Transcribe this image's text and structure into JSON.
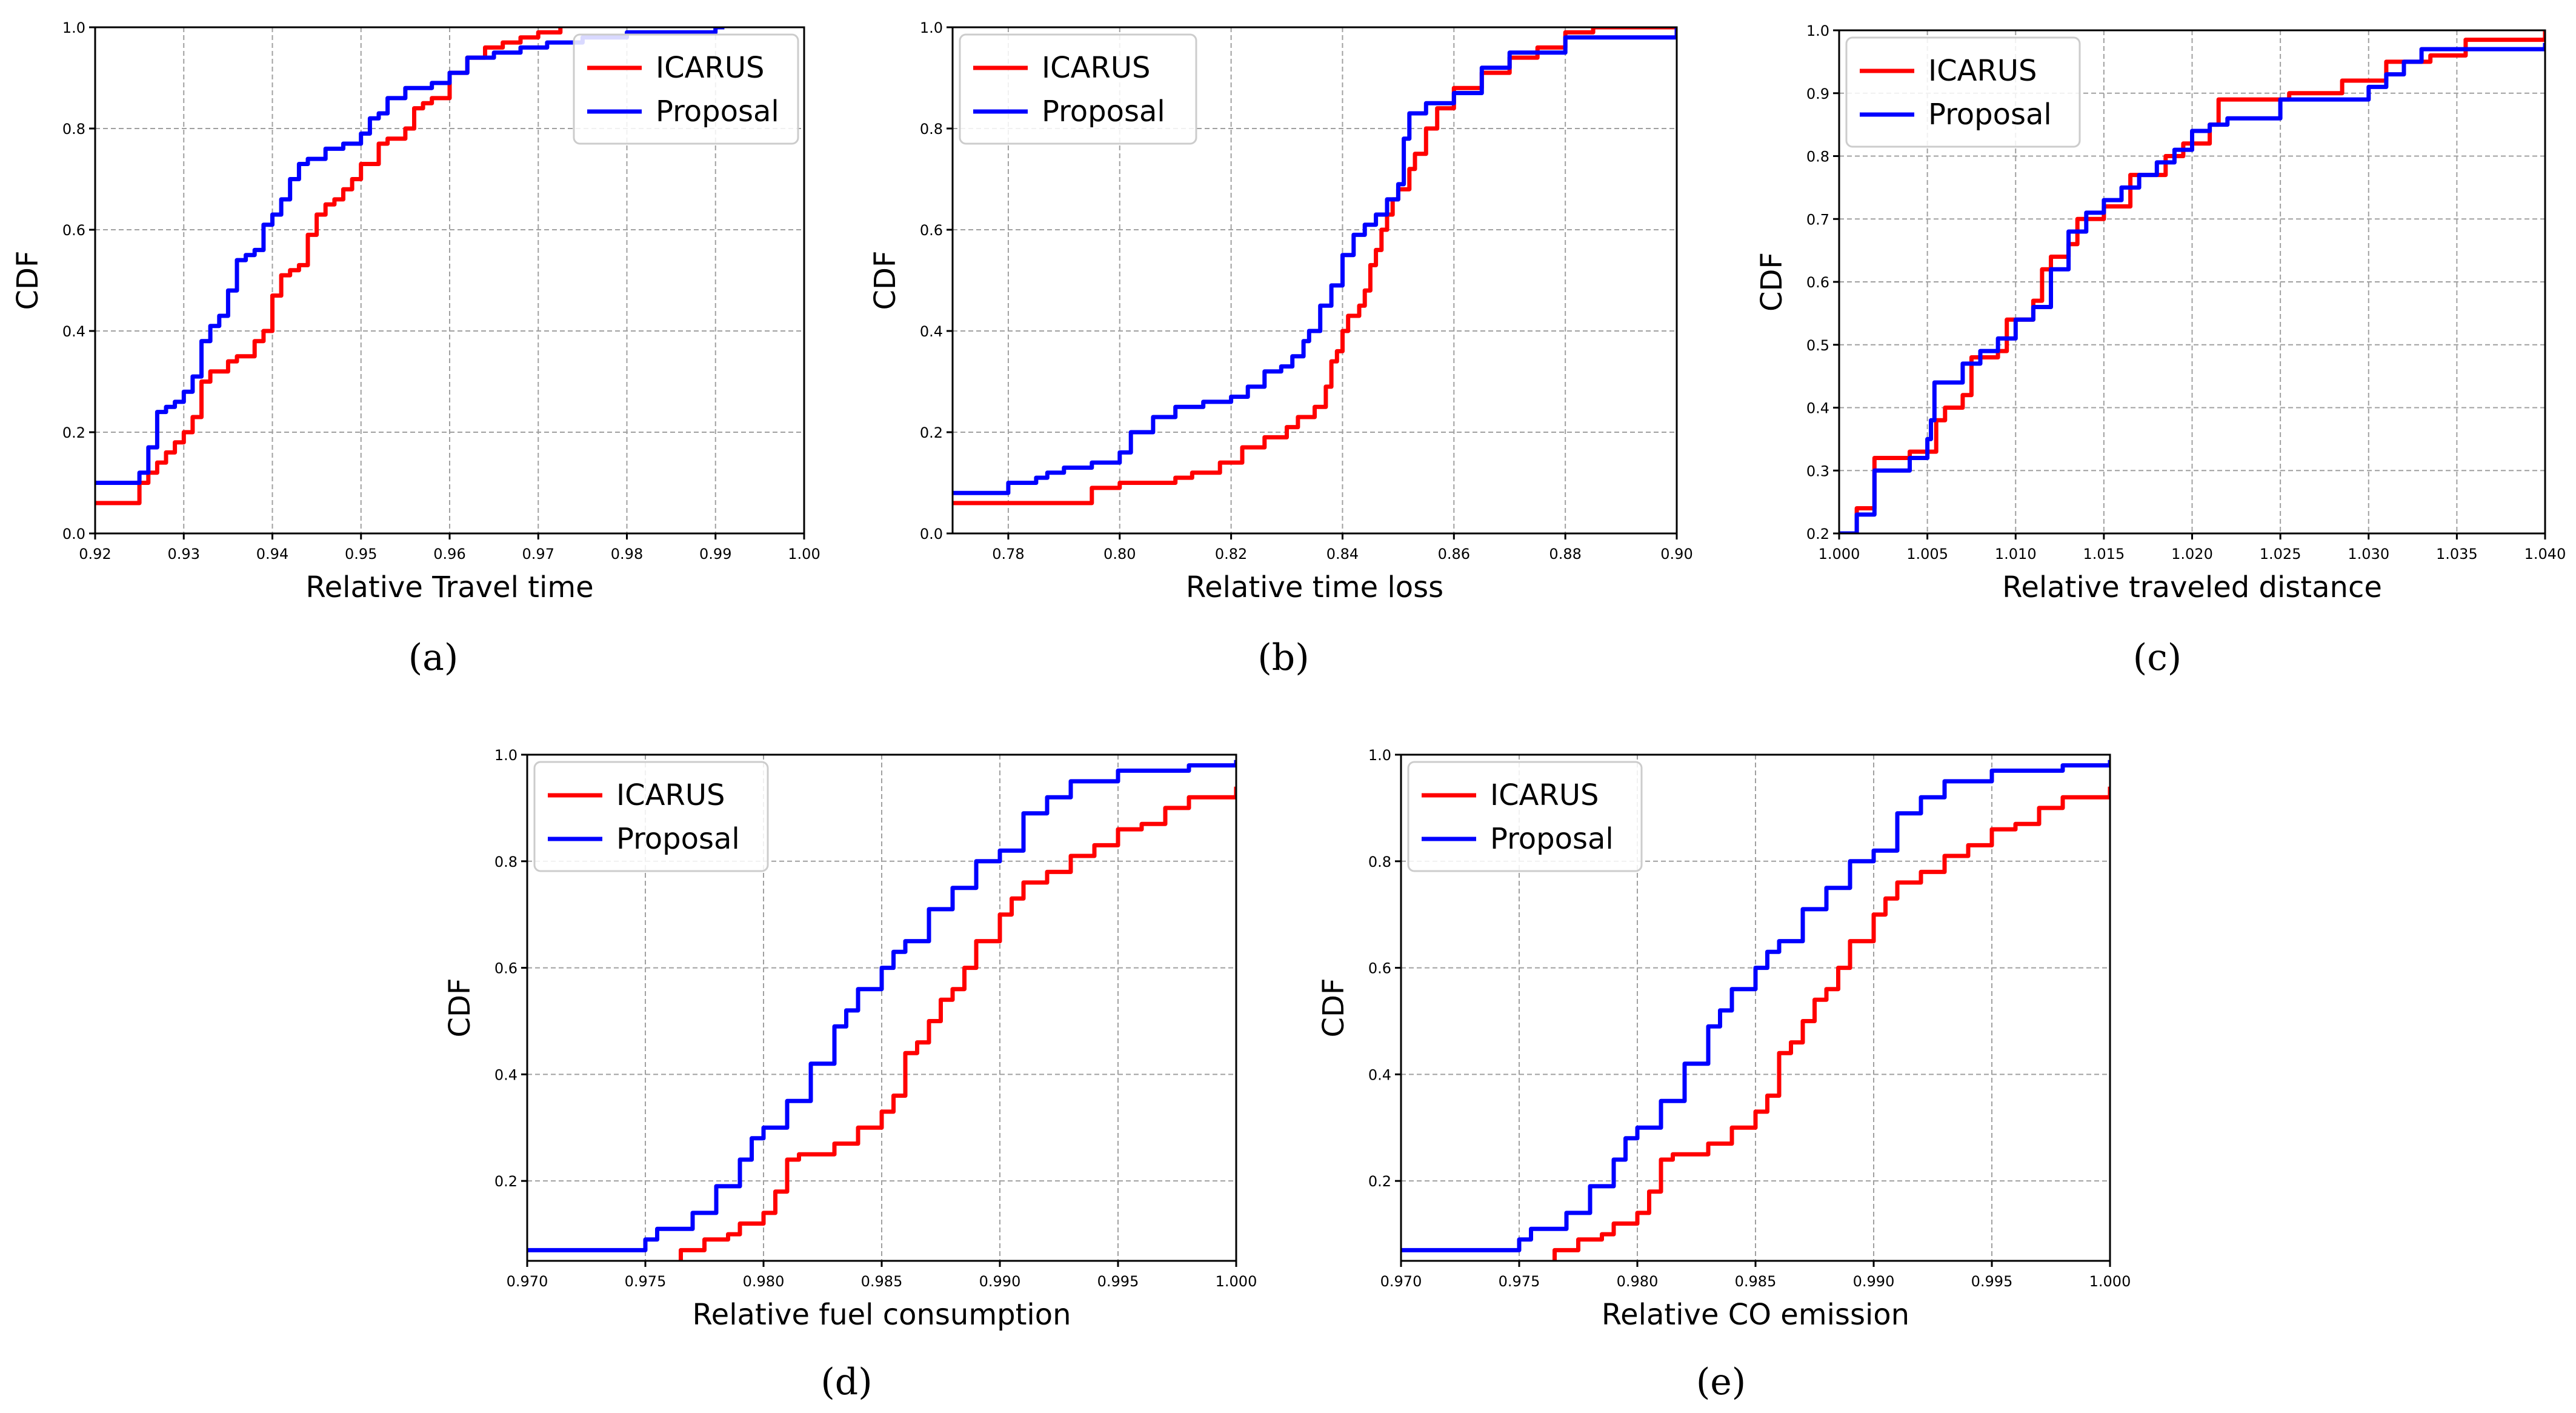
{
  "figure": {
    "series_colors": {
      "ICARUS": "#ff0000",
      "Proposal": "#0000ff"
    }
  },
  "chart_data": [
    {
      "type": "line",
      "caption": "(a)",
      "xlabel": "Relative Travel time",
      "ylabel": "CDF",
      "xlim": [
        0.92,
        1.0
      ],
      "ylim": [
        0.0,
        1.0
      ],
      "xticks": [
        "0.92",
        "0.93",
        "0.94",
        "0.95",
        "0.96",
        "0.97",
        "0.98",
        "0.99",
        "1.00"
      ],
      "yticks": [
        "0.0",
        "0.2",
        "0.4",
        "0.6",
        "0.8",
        "1.0"
      ],
      "legend": [
        "ICARUS",
        "Proposal"
      ],
      "legend_position": "top-right",
      "series": [
        {
          "name": "ICARUS",
          "color": "#ff0000",
          "x": [
            0.92,
            0.925,
            0.926,
            0.927,
            0.928,
            0.929,
            0.93,
            0.931,
            0.932,
            0.933,
            0.935,
            0.936,
            0.938,
            0.939,
            0.94,
            0.941,
            0.942,
            0.943,
            0.944,
            0.945,
            0.946,
            0.947,
            0.948,
            0.949,
            0.95,
            0.952,
            0.953,
            0.954,
            0.955,
            0.956,
            0.957,
            0.958,
            0.96,
            0.962,
            0.964,
            0.966,
            0.968,
            0.97,
            0.972,
            0.9725
          ],
          "y": [
            0.06,
            0.1,
            0.12,
            0.14,
            0.16,
            0.18,
            0.2,
            0.23,
            0.3,
            0.32,
            0.34,
            0.35,
            0.38,
            0.4,
            0.47,
            0.51,
            0.52,
            0.53,
            0.59,
            0.63,
            0.65,
            0.66,
            0.68,
            0.7,
            0.73,
            0.77,
            0.78,
            0.78,
            0.8,
            0.84,
            0.85,
            0.86,
            0.91,
            0.94,
            0.96,
            0.97,
            0.98,
            0.99,
            0.99,
            1.0
          ]
        },
        {
          "name": "Proposal",
          "color": "#0000ff",
          "x": [
            0.92,
            0.925,
            0.926,
            0.927,
            0.928,
            0.929,
            0.93,
            0.931,
            0.932,
            0.933,
            0.934,
            0.935,
            0.936,
            0.937,
            0.938,
            0.939,
            0.94,
            0.941,
            0.942,
            0.943,
            0.944,
            0.946,
            0.948,
            0.95,
            0.951,
            0.952,
            0.953,
            0.955,
            0.958,
            0.96,
            0.962,
            0.965,
            0.968,
            0.971,
            0.975,
            0.98,
            0.985,
            0.99,
            0.991
          ],
          "y": [
            0.1,
            0.12,
            0.17,
            0.24,
            0.25,
            0.26,
            0.28,
            0.31,
            0.38,
            0.41,
            0.43,
            0.48,
            0.54,
            0.55,
            0.56,
            0.61,
            0.63,
            0.66,
            0.7,
            0.73,
            0.74,
            0.76,
            0.77,
            0.79,
            0.82,
            0.83,
            0.86,
            0.88,
            0.89,
            0.91,
            0.94,
            0.95,
            0.96,
            0.97,
            0.98,
            0.99,
            0.99,
            1.0,
            1.0
          ]
        }
      ]
    },
    {
      "type": "line",
      "caption": "(b)",
      "xlabel": "Relative time loss",
      "ylabel": "CDF",
      "xlim": [
        0.77,
        0.9
      ],
      "ylim": [
        0.0,
        1.0
      ],
      "xticks": [
        "0.78",
        "0.80",
        "0.82",
        "0.84",
        "0.86",
        "0.88",
        "0.90"
      ],
      "yticks": [
        "0.0",
        "0.2",
        "0.4",
        "0.6",
        "0.8",
        "1.0"
      ],
      "legend": [
        "ICARUS",
        "Proposal"
      ],
      "legend_position": "top-left",
      "series": [
        {
          "name": "ICARUS",
          "color": "#ff0000",
          "x": [
            0.77,
            0.785,
            0.795,
            0.8,
            0.81,
            0.813,
            0.818,
            0.822,
            0.826,
            0.83,
            0.832,
            0.835,
            0.837,
            0.838,
            0.839,
            0.84,
            0.841,
            0.843,
            0.844,
            0.845,
            0.846,
            0.847,
            0.848,
            0.849,
            0.85,
            0.852,
            0.853,
            0.855,
            0.857,
            0.86,
            0.865,
            0.87,
            0.875,
            0.88,
            0.885,
            0.89,
            0.9
          ],
          "y": [
            0.06,
            0.06,
            0.09,
            0.1,
            0.11,
            0.12,
            0.14,
            0.17,
            0.19,
            0.21,
            0.23,
            0.25,
            0.29,
            0.34,
            0.36,
            0.4,
            0.43,
            0.45,
            0.48,
            0.53,
            0.56,
            0.6,
            0.63,
            0.66,
            0.68,
            0.72,
            0.75,
            0.8,
            0.84,
            0.88,
            0.91,
            0.94,
            0.96,
            0.99,
            1.0,
            1.0,
            1.0
          ]
        },
        {
          "name": "Proposal",
          "color": "#0000ff",
          "x": [
            0.77,
            0.78,
            0.785,
            0.787,
            0.79,
            0.795,
            0.8,
            0.802,
            0.806,
            0.81,
            0.815,
            0.82,
            0.823,
            0.826,
            0.829,
            0.831,
            0.833,
            0.834,
            0.836,
            0.838,
            0.84,
            0.842,
            0.844,
            0.846,
            0.848,
            0.85,
            0.851,
            0.852,
            0.855,
            0.86,
            0.865,
            0.87,
            0.88,
            0.9
          ],
          "y": [
            0.08,
            0.1,
            0.11,
            0.12,
            0.13,
            0.14,
            0.16,
            0.2,
            0.23,
            0.25,
            0.26,
            0.27,
            0.29,
            0.32,
            0.33,
            0.35,
            0.38,
            0.4,
            0.45,
            0.49,
            0.55,
            0.59,
            0.61,
            0.63,
            0.66,
            0.69,
            0.78,
            0.83,
            0.85,
            0.87,
            0.92,
            0.95,
            0.98,
            1.0
          ]
        }
      ]
    },
    {
      "type": "line",
      "caption": "(c)",
      "xlabel": "Relative traveled distance",
      "ylabel": "CDF",
      "xlim": [
        1.0,
        1.04
      ],
      "ylim": [
        0.2,
        1.0
      ],
      "xticks": [
        "1.000",
        "1.005",
        "1.010",
        "1.015",
        "1.020",
        "1.025",
        "1.030",
        "1.035",
        "1.040"
      ],
      "yticks": [
        "0.2",
        "0.3",
        "0.4",
        "0.5",
        "0.6",
        "0.7",
        "0.8",
        "0.9",
        "1.0"
      ],
      "legend": [
        "ICARUS",
        "Proposal"
      ],
      "legend_position": "top-left",
      "series": [
        {
          "name": "ICARUS",
          "color": "#ff0000",
          "x": [
            1.0,
            1.001,
            1.002,
            1.004,
            1.005,
            1.0055,
            1.006,
            1.007,
            1.0075,
            1.009,
            1.0095,
            1.011,
            1.0115,
            1.012,
            1.013,
            1.0135,
            1.015,
            1.0165,
            1.0185,
            1.0195,
            1.021,
            1.0215,
            1.0255,
            1.0275,
            1.0285,
            1.031,
            1.0335,
            1.0355,
            1.04
          ],
          "y": [
            0.2,
            0.24,
            0.32,
            0.33,
            0.33,
            0.38,
            0.4,
            0.42,
            0.48,
            0.49,
            0.54,
            0.57,
            0.62,
            0.64,
            0.66,
            0.7,
            0.72,
            0.77,
            0.8,
            0.82,
            0.85,
            0.89,
            0.9,
            0.9,
            0.92,
            0.95,
            0.96,
            0.985,
            1.0
          ]
        },
        {
          "name": "Proposal",
          "color": "#0000ff",
          "x": [
            1.0,
            1.001,
            1.002,
            1.004,
            1.005,
            1.0052,
            1.0054,
            1.007,
            1.008,
            1.009,
            1.01,
            1.011,
            1.012,
            1.013,
            1.014,
            1.015,
            1.016,
            1.017,
            1.018,
            1.019,
            1.02,
            1.021,
            1.022,
            1.025,
            1.03,
            1.031,
            1.032,
            1.033,
            1.04
          ],
          "y": [
            0.2,
            0.23,
            0.3,
            0.32,
            0.35,
            0.38,
            0.44,
            0.47,
            0.49,
            0.51,
            0.54,
            0.56,
            0.62,
            0.68,
            0.71,
            0.73,
            0.75,
            0.77,
            0.79,
            0.81,
            0.84,
            0.85,
            0.86,
            0.89,
            0.91,
            0.93,
            0.95,
            0.97,
            0.98
          ]
        }
      ]
    },
    {
      "type": "line",
      "caption": "(d)",
      "xlabel": "Relative fuel consumption",
      "ylabel": "CDF",
      "xlim": [
        0.97,
        1.0
      ],
      "ylim": [
        0.05,
        1.0
      ],
      "xticks": [
        "0.970",
        "0.975",
        "0.980",
        "0.985",
        "0.990",
        "0.995",
        "1.000"
      ],
      "yticks": [
        "0.2",
        "0.4",
        "0.6",
        "0.8",
        "1.0"
      ],
      "legend": [
        "ICARUS",
        "Proposal"
      ],
      "legend_position": "top-left",
      "series": [
        {
          "name": "ICARUS",
          "color": "#ff0000",
          "x": [
            0.9765,
            0.9765,
            0.9775,
            0.9785,
            0.979,
            0.98,
            0.9805,
            0.981,
            0.9815,
            0.983,
            0.984,
            0.985,
            0.9855,
            0.986,
            0.9865,
            0.987,
            0.9875,
            0.988,
            0.9885,
            0.989,
            0.99,
            0.9905,
            0.991,
            0.992,
            0.993,
            0.994,
            0.995,
            0.996,
            0.997,
            0.998,
            1.0
          ],
          "y": [
            0.05,
            0.07,
            0.09,
            0.1,
            0.12,
            0.14,
            0.18,
            0.24,
            0.25,
            0.27,
            0.3,
            0.33,
            0.36,
            0.44,
            0.46,
            0.5,
            0.54,
            0.56,
            0.6,
            0.65,
            0.7,
            0.73,
            0.76,
            0.78,
            0.81,
            0.83,
            0.86,
            0.87,
            0.9,
            0.92,
            0.94
          ]
        },
        {
          "name": "Proposal",
          "color": "#0000ff",
          "x": [
            0.97,
            0.975,
            0.9755,
            0.977,
            0.978,
            0.979,
            0.9795,
            0.98,
            0.981,
            0.982,
            0.983,
            0.9835,
            0.984,
            0.985,
            0.9855,
            0.986,
            0.987,
            0.988,
            0.989,
            0.99,
            0.991,
            0.992,
            0.993,
            0.995,
            0.998,
            1.0
          ],
          "y": [
            0.07,
            0.09,
            0.11,
            0.14,
            0.19,
            0.24,
            0.28,
            0.3,
            0.35,
            0.42,
            0.49,
            0.52,
            0.56,
            0.6,
            0.63,
            0.65,
            0.71,
            0.75,
            0.8,
            0.82,
            0.89,
            0.92,
            0.95,
            0.97,
            0.98,
            0.99
          ]
        }
      ]
    },
    {
      "type": "line",
      "caption": "(e)",
      "xlabel": "Relative CO emission",
      "ylabel": "CDF",
      "xlim": [
        0.97,
        1.0
      ],
      "ylim": [
        0.05,
        1.0
      ],
      "xticks": [
        "0.970",
        "0.975",
        "0.980",
        "0.985",
        "0.990",
        "0.995",
        "1.000"
      ],
      "yticks": [
        "0.2",
        "0.4",
        "0.6",
        "0.8",
        "1.0"
      ],
      "legend": [
        "ICARUS",
        "Proposal"
      ],
      "legend_position": "top-left",
      "series": [
        {
          "name": "ICARUS",
          "color": "#ff0000",
          "x": [
            0.9765,
            0.9765,
            0.9775,
            0.9785,
            0.979,
            0.98,
            0.9805,
            0.981,
            0.9815,
            0.983,
            0.984,
            0.985,
            0.9855,
            0.986,
            0.9865,
            0.987,
            0.9875,
            0.988,
            0.9885,
            0.989,
            0.99,
            0.9905,
            0.991,
            0.992,
            0.993,
            0.994,
            0.995,
            0.996,
            0.997,
            0.998,
            1.0
          ],
          "y": [
            0.05,
            0.07,
            0.09,
            0.1,
            0.12,
            0.14,
            0.18,
            0.24,
            0.25,
            0.27,
            0.3,
            0.33,
            0.36,
            0.44,
            0.46,
            0.5,
            0.54,
            0.56,
            0.6,
            0.65,
            0.7,
            0.73,
            0.76,
            0.78,
            0.81,
            0.83,
            0.86,
            0.87,
            0.9,
            0.92,
            0.94
          ]
        },
        {
          "name": "Proposal",
          "color": "#0000ff",
          "x": [
            0.97,
            0.975,
            0.9755,
            0.977,
            0.978,
            0.979,
            0.9795,
            0.98,
            0.981,
            0.982,
            0.983,
            0.9835,
            0.984,
            0.985,
            0.9855,
            0.986,
            0.987,
            0.988,
            0.989,
            0.99,
            0.991,
            0.992,
            0.993,
            0.995,
            0.998,
            1.0
          ],
          "y": [
            0.07,
            0.09,
            0.11,
            0.14,
            0.19,
            0.24,
            0.28,
            0.3,
            0.35,
            0.42,
            0.49,
            0.52,
            0.56,
            0.6,
            0.63,
            0.65,
            0.71,
            0.75,
            0.8,
            0.82,
            0.89,
            0.92,
            0.95,
            0.97,
            0.98,
            0.99
          ]
        }
      ]
    }
  ]
}
